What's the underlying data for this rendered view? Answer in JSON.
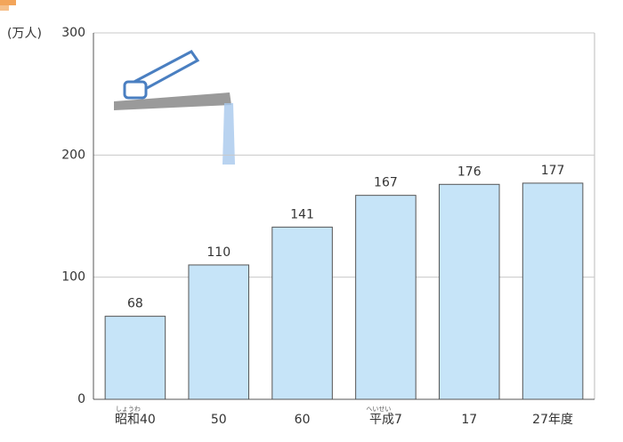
{
  "chart_data": {
    "type": "bar",
    "y_axis_label": "(万人)",
    "categories": [
      "昭和40",
      "50",
      "60",
      "平成7",
      "17",
      "27年度"
    ],
    "category_ruby": [
      "しょうわ",
      null,
      null,
      "へいせい",
      null,
      null
    ],
    "values": [
      68,
      110,
      141,
      167,
      176,
      177
    ],
    "color": "#c6e4f8",
    "ylim": [
      0,
      300
    ],
    "yticks": [
      0,
      100,
      200,
      300
    ],
    "grid": true
  }
}
